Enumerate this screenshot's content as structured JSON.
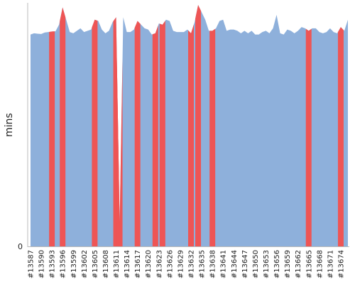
{
  "chart_data": {
    "type": "area",
    "ylabel": "mins",
    "y_tick_labels": [
      "0"
    ],
    "ylim": [
      0,
      100
    ],
    "grid": false,
    "colors": {
      "normal": "#8eb0db",
      "highlight": "#ee5555",
      "axis": "#bbbbbb"
    },
    "x_tick_labels": [
      "#13587",
      "#13590",
      "#13593",
      "#13596",
      "#13599",
      "#13602",
      "#13605",
      "#13608",
      "#13611",
      "#13614",
      "#13617",
      "#13620",
      "#13623",
      "#13626",
      "#13629",
      "#13632",
      "#13635",
      "#13638",
      "#13641",
      "#13644",
      "#13647",
      "#13650",
      "#13653",
      "#13656",
      "#13659",
      "#13662",
      "#13665",
      "#13668",
      "#13671",
      "#13674"
    ],
    "x_start": 13587,
    "x_end": 13675,
    "values": [
      86,
      86.5,
      86.3,
      86.2,
      86.8,
      87,
      87.2,
      87.3,
      90,
      97,
      92,
      87,
      86.5,
      87.5,
      88.5,
      87,
      87.5,
      88,
      92,
      91.5,
      88,
      86.5,
      87.5,
      91,
      93,
      10,
      93,
      87,
      87,
      88,
      91.5,
      90,
      88.5,
      88,
      86,
      86.5,
      90.5,
      90,
      92,
      91.5,
      87.5,
      87,
      87,
      87,
      88,
      86.5,
      91,
      98,
      95,
      92,
      87.5,
      87.5,
      88.5,
      91.5,
      92,
      87.5,
      88,
      88,
      87.5,
      86.5,
      87.5,
      86.5,
      87.5,
      86,
      86,
      87,
      87.5,
      86.5,
      88.5,
      94,
      86.5,
      86,
      88,
      87.5,
      86.5,
      87.5,
      89,
      88.5,
      87.5,
      88.5,
      88.5,
      87,
      86.5,
      87,
      88.5,
      87,
      86.5,
      89,
      87.5,
      92
    ],
    "highlighted_builds": [
      13593,
      13596,
      13605,
      13611,
      13612,
      13617,
      13622,
      13624,
      13632,
      13634,
      13638,
      13665,
      13674
    ]
  }
}
